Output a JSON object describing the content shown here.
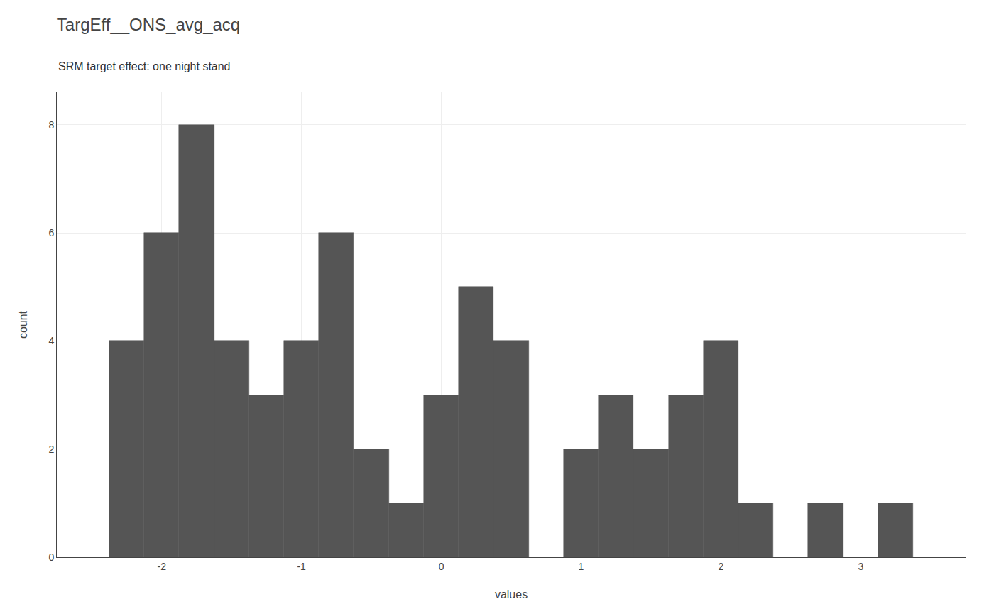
{
  "chart_data": {
    "type": "histogram",
    "title": "TargEff__ONS_avg_acq",
    "subtitle": "SRM target effect: one night stand",
    "xlabel": "values",
    "ylabel": "count",
    "color": "#555555",
    "bins": [
      -2.375,
      -2.125,
      -1.875,
      -1.625,
      -1.375,
      -1.125,
      -0.875,
      -0.625,
      -0.375,
      -0.125,
      0.125,
      0.375,
      0.625,
      0.875,
      1.125,
      1.375,
      1.625,
      1.875,
      2.125,
      2.375,
      2.625,
      2.875,
      3.125,
      3.375
    ],
    "counts": [
      4,
      6,
      8,
      4,
      3,
      4,
      6,
      2,
      1,
      3,
      5,
      4,
      0,
      2,
      3,
      2,
      3,
      4,
      1,
      0,
      1,
      0,
      1
    ],
    "xlim": [
      -2.75,
      3.75
    ],
    "ylim": [
      0,
      8.6
    ],
    "xticks": [
      -2,
      -1,
      0,
      1,
      2,
      3
    ],
    "yticks": [
      0,
      2,
      4,
      6,
      8
    ],
    "grid": true
  }
}
